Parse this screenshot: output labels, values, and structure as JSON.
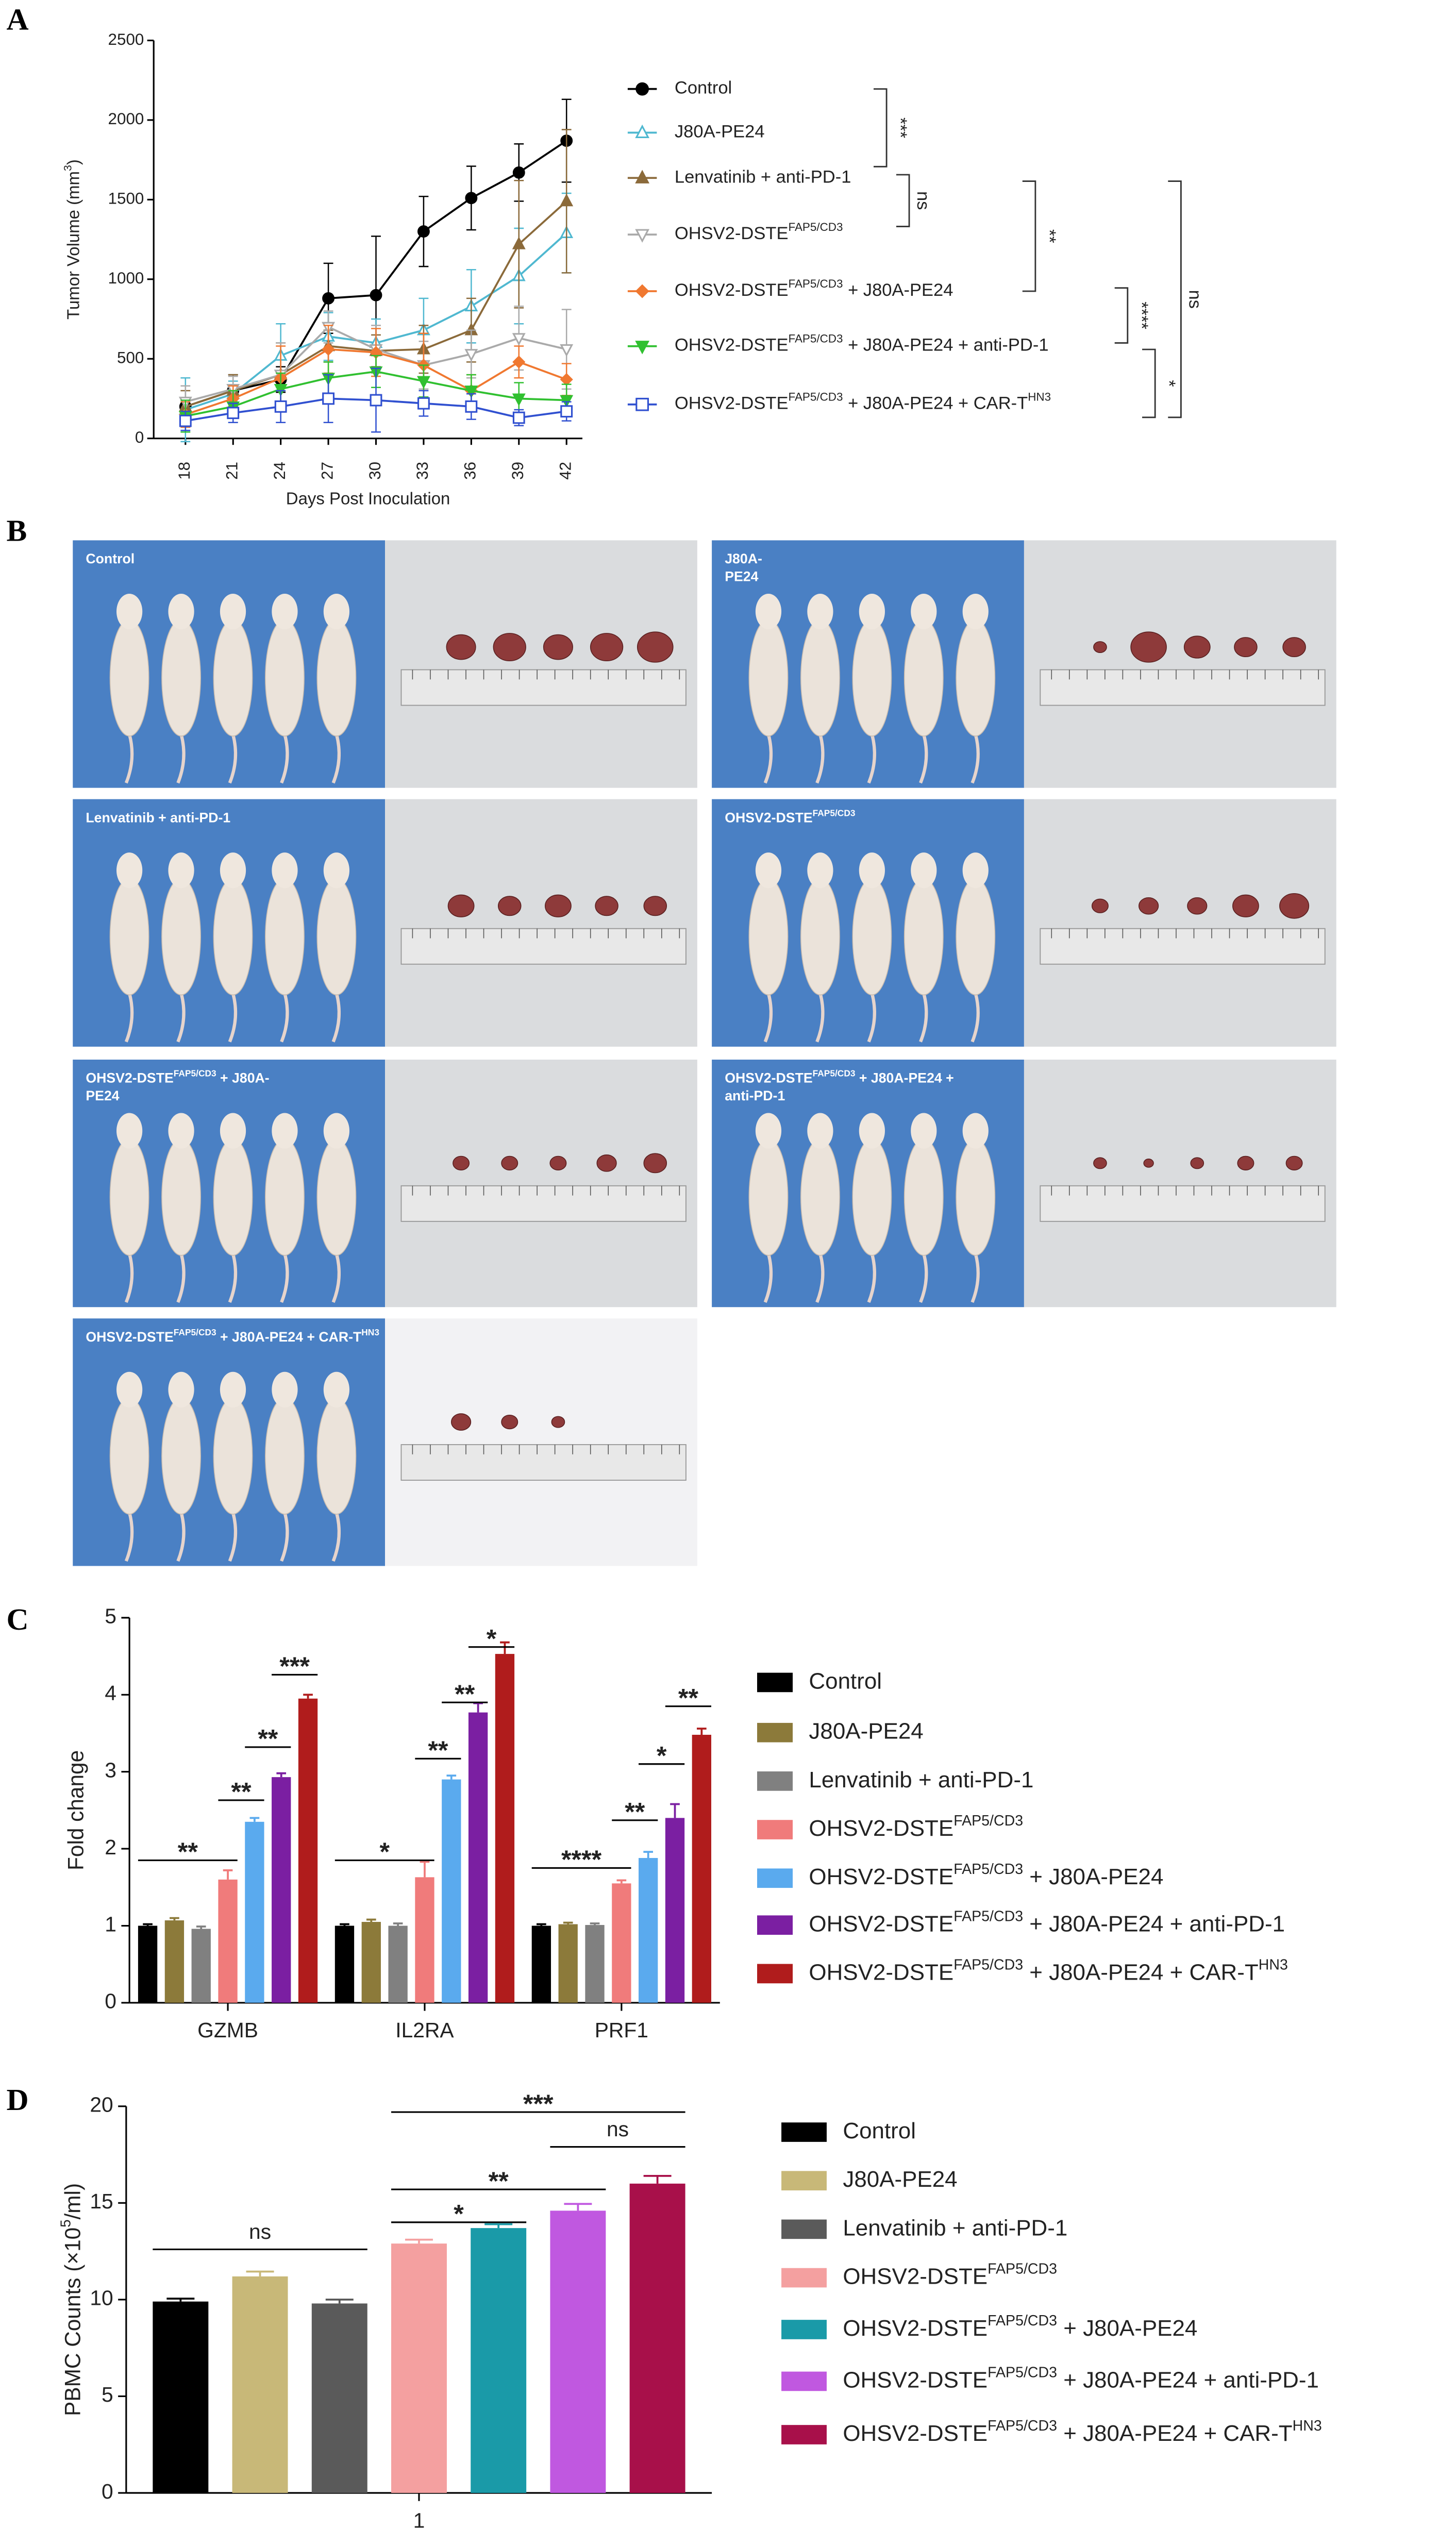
{
  "panel_labels": [
    "A",
    "B",
    "C",
    "D"
  ],
  "chart_data": [
    {
      "type": "line",
      "y_label": [
        "Tumor Volume (mm",
        {
          "sup": "3"
        },
        ")"
      ],
      "x_label": "Days Post Inoculation",
      "x": [
        18,
        21,
        24,
        27,
        30,
        33,
        36,
        39,
        42
      ],
      "xlim": [
        16,
        43
      ],
      "xticks": [
        18,
        21,
        24,
        27,
        30,
        33,
        36,
        39,
        42
      ],
      "ylim": [
        0,
        2500
      ],
      "yticks": [
        0,
        500,
        1000,
        1500,
        2000,
        2500
      ],
      "series": [
        {
          "name": [
            "Control"
          ],
          "color": "#000000",
          "marker": "circle-filled",
          "values": [
            200,
            300,
            370,
            880,
            900,
            1300,
            1510,
            1670,
            1870
          ],
          "errors": [
            50,
            100,
            80,
            220,
            370,
            220,
            200,
            180,
            260
          ]
        },
        {
          "name": [
            "J80A-PE24"
          ],
          "color": "#4fb8d0",
          "marker": "triangle-up-open",
          "values": [
            180,
            280,
            520,
            640,
            600,
            680,
            830,
            1020,
            1290
          ],
          "errors": [
            200,
            80,
            200,
            150,
            150,
            200,
            230,
            300,
            250
          ]
        },
        {
          "name": [
            "Lenvatinib + anti-PD-1"
          ],
          "color": "#8b6a3a",
          "marker": "triangle-up-filled",
          "values": [
            200,
            300,
            400,
            580,
            550,
            560,
            680,
            1220,
            1490
          ],
          "errors": [
            100,
            100,
            200,
            100,
            100,
            150,
            200,
            400,
            450
          ]
        },
        {
          "name": [
            "OHSV2-DSTE",
            {
              "sup": "FAP5/CD3"
            }
          ],
          "color": "#aaaaaa",
          "marker": "triangle-down-open",
          "values": [
            230,
            310,
            400,
            700,
            560,
            460,
            530,
            630,
            560
          ],
          "errors": [
            100,
            80,
            200,
            100,
            150,
            150,
            150,
            200,
            250
          ]
        },
        {
          "name": [
            "OHSV2-DSTE",
            {
              "sup": "FAP5/CD3"
            },
            " + J80A-PE24"
          ],
          "color": "#f07830",
          "marker": "diamond-filled",
          "values": [
            150,
            250,
            380,
            560,
            540,
            460,
            300,
            480,
            370
          ],
          "errors": [
            80,
            80,
            200,
            150,
            150,
            200,
            100,
            100,
            100
          ]
        },
        {
          "name": [
            "OHSV2-DSTE",
            {
              "sup": "FAP5/CD3"
            },
            " + J80A-PE24 + anti-PD-1"
          ],
          "color": "#30c030",
          "marker": "triangle-down-filled",
          "values": [
            140,
            200,
            310,
            380,
            420,
            360,
            300,
            250,
            240
          ],
          "errors": [
            100,
            100,
            100,
            100,
            100,
            100,
            100,
            100,
            100
          ]
        },
        {
          "name": [
            "OHSV2-DSTE",
            {
              "sup": "FAP5/CD3"
            },
            " + J80A-PE24 + CAR-T",
            {
              "sup": "HN3"
            }
          ],
          "color": "#3050d0",
          "marker": "square-open",
          "values": [
            110,
            160,
            200,
            250,
            240,
            220,
            200,
            130,
            170
          ],
          "errors": [
            60,
            60,
            100,
            150,
            200,
            80,
            80,
            50,
            60
          ]
        }
      ],
      "annotations": [
        "***",
        "ns",
        "**",
        "ns",
        "****",
        "*"
      ]
    },
    {
      "type": "bar",
      "y_label": [
        "Fold change"
      ],
      "categories": [
        "GZMB",
        "IL2RA",
        "PRF1"
      ],
      "ylim": [
        0,
        5
      ],
      "yticks": [
        0,
        1,
        2,
        3,
        4,
        5
      ],
      "series": [
        {
          "name": [
            "Control"
          ],
          "color": "#000000",
          "values": [
            1,
            1,
            1
          ],
          "errors": [
            0.02,
            0.02,
            0.02
          ]
        },
        {
          "name": [
            "J80A-PE24"
          ],
          "color": "#8c7a3a",
          "values": [
            1.07,
            1.05,
            1.02
          ],
          "errors": [
            0.03,
            0.03,
            0.02
          ]
        },
        {
          "name": [
            "Lenvatinib + anti-PD-1"
          ],
          "color": "#808080",
          "values": [
            0.96,
            1.0,
            1.01
          ],
          "errors": [
            0.03,
            0.03,
            0.02
          ]
        },
        {
          "name": [
            "OHSV2-DSTE",
            {
              "sup": "FAP5/CD3"
            }
          ],
          "color": "#f07b7b",
          "values": [
            1.6,
            1.63,
            1.55
          ],
          "errors": [
            0.12,
            0.2,
            0.04
          ]
        },
        {
          "name": [
            "OHSV2-DSTE",
            {
              "sup": "FAP5/CD3"
            },
            " + J80A-PE24"
          ],
          "color": "#5aaaee",
          "values": [
            2.35,
            2.9,
            1.88
          ],
          "errors": [
            0.05,
            0.05,
            0.08
          ]
        },
        {
          "name": [
            "OHSV2-DSTE",
            {
              "sup": "FAP5/CD3"
            },
            " + J80A-PE24 + anti-PD-1"
          ],
          "color": "#7b1fa2",
          "values": [
            2.93,
            3.77,
            2.4
          ],
          "errors": [
            0.05,
            0.12,
            0.18
          ]
        },
        {
          "name": [
            "OHSV2-DSTE",
            {
              "sup": "FAP5/CD3"
            },
            " + J80A-PE24 + CAR-T",
            {
              "sup": "HN3"
            }
          ],
          "color": "#b01c1c",
          "values": [
            3.95,
            4.53,
            3.48
          ],
          "errors": [
            0.05,
            0.15,
            0.08
          ]
        }
      ],
      "annotations": [
        "**",
        "**",
        "**",
        "***",
        "*",
        "**",
        "**",
        "*",
        "****",
        "**",
        "*",
        "**"
      ]
    },
    {
      "type": "bar",
      "y_label": [
        "PBMC Counts (×10",
        {
          "sup": "5"
        },
        "/ml)"
      ],
      "categories": [
        "1"
      ],
      "ylim": [
        0,
        20
      ],
      "yticks": [
        0,
        5,
        10,
        15,
        20
      ],
      "series": [
        {
          "name": [
            "Control"
          ],
          "color": "#000000",
          "values": [
            9.9
          ],
          "errors": [
            0.15
          ]
        },
        {
          "name": [
            "J80A-PE24"
          ],
          "color": "#c8b878",
          "values": [
            11.2
          ],
          "errors": [
            0.25
          ]
        },
        {
          "name": [
            "Lenvatinib + anti-PD-1"
          ],
          "color": "#5a5a5a",
          "values": [
            9.8
          ],
          "errors": [
            0.2
          ]
        },
        {
          "name": [
            "OHSV2-DSTE",
            {
              "sup": "FAP5/CD3"
            }
          ],
          "color": "#f4a0a0",
          "values": [
            12.9
          ],
          "errors": [
            0.2
          ]
        },
        {
          "name": [
            "OHSV2-DSTE",
            {
              "sup": "FAP5/CD3"
            },
            " + J80A-PE24"
          ],
          "color": "#1a9aa8",
          "values": [
            13.7
          ],
          "errors": [
            0.2
          ]
        },
        {
          "name": [
            "OHSV2-DSTE",
            {
              "sup": "FAP5/CD3"
            },
            " + J80A-PE24 + anti-PD-1"
          ],
          "color": "#c058e0",
          "values": [
            14.6
          ],
          "errors": [
            0.35
          ]
        },
        {
          "name": [
            "OHSV2-DSTE",
            {
              "sup": "FAP5/CD3"
            },
            " + J80A-PE24 + CAR-T",
            {
              "sup": "HN3"
            }
          ],
          "color": "#a8104a",
          "values": [
            16.0
          ],
          "errors": [
            0.4
          ]
        }
      ],
      "annotations": [
        "ns",
        "*",
        "**",
        "***",
        "ns"
      ]
    }
  ],
  "photos": [
    {
      "label": [
        [
          "Control"
        ]
      ]
    },
    {
      "label": [
        [
          "J80A-"
        ],
        [
          "PE24"
        ]
      ]
    },
    {
      "label": [
        [
          "Lenvatinib + anti-PD-1"
        ]
      ]
    },
    {
      "label": [
        [
          "OHSV2-DSTE",
          {
            "sup": "FAP5/CD3"
          }
        ]
      ]
    },
    {
      "label": [
        [
          "OHSV2-DSTE",
          {
            "sup": "FAP5/CD3"
          },
          " + J80A-"
        ],
        [
          "PE24"
        ]
      ]
    },
    {
      "label": [
        [
          "OHSV2-DSTE",
          {
            "sup": "FAP5/CD3"
          },
          " + J80A-PE24 +"
        ],
        [
          "anti-PD-1"
        ]
      ]
    },
    {
      "label": [
        [
          "OHSV2-DSTE",
          {
            "sup": "FAP5/CD3"
          },
          " + J80A-PE24 + CAR-T",
          {
            "sup": "HN3"
          }
        ]
      ]
    }
  ]
}
